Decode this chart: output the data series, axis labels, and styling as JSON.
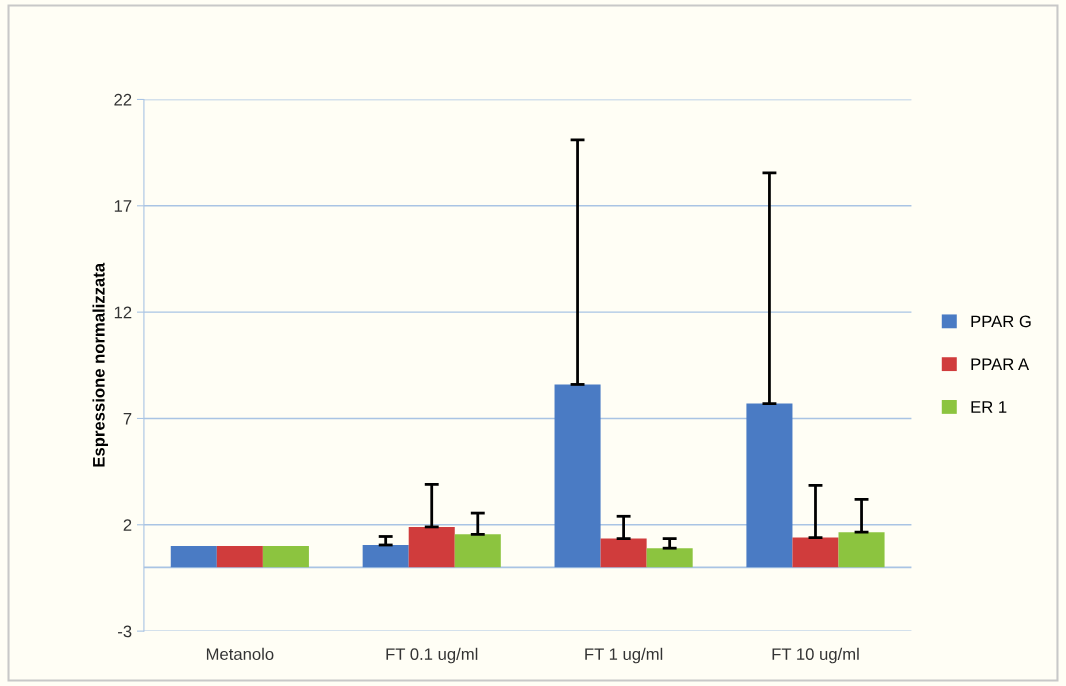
{
  "chart_data": {
    "type": "bar",
    "ylabel": "Espressione normalizzata",
    "categories": [
      "Metanolo",
      "FT 0.1 ug/ml",
      "FT 1 ug/ml",
      "FT 10 ug/ml"
    ],
    "series": [
      {
        "name": "PPAR G",
        "color": "#4a7bc4",
        "values": [
          1.0,
          1.05,
          8.6,
          7.7
        ],
        "errors": [
          null,
          [
            1.05,
            1.45
          ],
          [
            8.6,
            20.1
          ],
          [
            7.7,
            18.55
          ]
        ]
      },
      {
        "name": "PPAR A",
        "color": "#d03c3c",
        "values": [
          1.0,
          1.9,
          1.35,
          1.4
        ],
        "errors": [
          null,
          [
            1.9,
            3.9
          ],
          [
            1.35,
            2.4
          ],
          [
            1.4,
            3.85
          ]
        ]
      },
      {
        "name": "ER 1",
        "color": "#8cc43f",
        "values": [
          1.0,
          1.55,
          0.9,
          1.65
        ],
        "errors": [
          null,
          [
            1.55,
            2.55
          ],
          [
            0.9,
            1.35
          ],
          [
            1.65,
            3.2
          ]
        ]
      }
    ],
    "ylim": [
      -3,
      22
    ],
    "yticks": [
      -3,
      2,
      7,
      12,
      17,
      22
    ],
    "grid": "y",
    "legend": "right"
  }
}
